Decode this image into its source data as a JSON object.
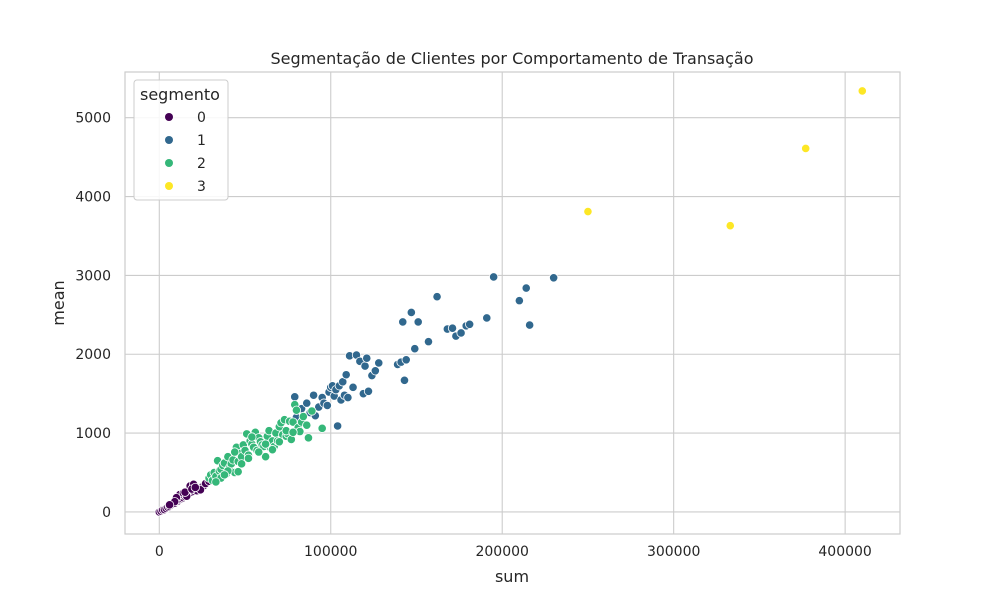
{
  "chart_data": {
    "type": "scatter",
    "title": "Segmentação de Clientes por Comportamento de Transação",
    "xlabel": "sum",
    "ylabel": "mean",
    "xlim": [
      -20000,
      432000
    ],
    "ylim": [
      -280,
      5580
    ],
    "x_ticks": [
      0,
      100000,
      200000,
      300000,
      400000
    ],
    "x_tick_labels": [
      "0",
      "100000",
      "200000",
      "300000",
      "400000"
    ],
    "y_ticks": [
      0,
      1000,
      2000,
      3000,
      4000,
      5000
    ],
    "y_tick_labels": [
      "0",
      "1000",
      "2000",
      "3000",
      "4000",
      "5000"
    ],
    "grid": true,
    "legend": {
      "title": "segmento",
      "placement": "top-left"
    },
    "series": [
      {
        "name": "0",
        "color": "#440154",
        "points": [
          [
            0,
            0
          ],
          [
            1000,
            10
          ],
          [
            2000,
            25
          ],
          [
            3000,
            30
          ],
          [
            4000,
            45
          ],
          [
            5000,
            60
          ],
          [
            6000,
            70
          ],
          [
            7000,
            85
          ],
          [
            8000,
            100
          ],
          [
            9000,
            110
          ],
          [
            10000,
            130
          ],
          [
            11000,
            140
          ],
          [
            12000,
            160
          ],
          [
            13000,
            170
          ],
          [
            14000,
            180
          ],
          [
            15000,
            195
          ],
          [
            16000,
            210
          ],
          [
            17000,
            225
          ],
          [
            18000,
            240
          ],
          [
            19000,
            250
          ],
          [
            20000,
            265
          ],
          [
            21000,
            280
          ],
          [
            22000,
            290
          ],
          [
            23000,
            300
          ],
          [
            24000,
            310
          ],
          [
            25000,
            320
          ],
          [
            26000,
            335
          ],
          [
            18000,
            330
          ],
          [
            20000,
            350
          ],
          [
            12000,
            220
          ],
          [
            10000,
            180
          ],
          [
            14000,
            240
          ],
          [
            16000,
            200
          ],
          [
            22000,
            270
          ],
          [
            24000,
            280
          ],
          [
            27000,
            360
          ],
          [
            29000,
            390
          ],
          [
            15000,
            250
          ],
          [
            9000,
            130
          ],
          [
            6000,
            90
          ],
          [
            19000,
            290
          ],
          [
            21000,
            310
          ]
        ]
      },
      {
        "name": "1",
        "color": "#31688e",
        "points": [
          [
            79000,
            1460
          ],
          [
            80000,
            1200
          ],
          [
            83000,
            1310
          ],
          [
            86000,
            1380
          ],
          [
            88000,
            1260
          ],
          [
            90000,
            1480
          ],
          [
            91000,
            1220
          ],
          [
            93000,
            1330
          ],
          [
            95000,
            1450
          ],
          [
            96000,
            1380
          ],
          [
            98000,
            1350
          ],
          [
            99000,
            1520
          ],
          [
            100000,
            1580
          ],
          [
            101000,
            1600
          ],
          [
            102000,
            1470
          ],
          [
            103000,
            1550
          ],
          [
            104000,
            1090
          ],
          [
            105000,
            1600
          ],
          [
            106000,
            1420
          ],
          [
            107000,
            1650
          ],
          [
            108000,
            1480
          ],
          [
            109000,
            1740
          ],
          [
            110000,
            1450
          ],
          [
            111000,
            1980
          ],
          [
            113000,
            1580
          ],
          [
            115000,
            1990
          ],
          [
            117000,
            1910
          ],
          [
            119000,
            1500
          ],
          [
            120000,
            1850
          ],
          [
            121000,
            1950
          ],
          [
            122000,
            1530
          ],
          [
            124000,
            1730
          ],
          [
            126000,
            1790
          ],
          [
            128000,
            1890
          ],
          [
            139000,
            1870
          ],
          [
            141000,
            1900
          ],
          [
            142000,
            2410
          ],
          [
            143000,
            1670
          ],
          [
            144000,
            1930
          ],
          [
            147000,
            2530
          ],
          [
            149000,
            2070
          ],
          [
            151000,
            2410
          ],
          [
            157000,
            2160
          ],
          [
            162000,
            2730
          ],
          [
            168000,
            2320
          ],
          [
            171000,
            2330
          ],
          [
            173000,
            2230
          ],
          [
            176000,
            2270
          ],
          [
            179000,
            2360
          ],
          [
            181000,
            2380
          ],
          [
            191000,
            2460
          ],
          [
            195000,
            2980
          ],
          [
            210000,
            2680
          ],
          [
            214000,
            2840
          ],
          [
            216000,
            2370
          ],
          [
            230000,
            2970
          ]
        ]
      },
      {
        "name": "2",
        "color": "#35b779",
        "points": [
          [
            29000,
            430
          ],
          [
            30000,
            470
          ],
          [
            31000,
            400
          ],
          [
            32000,
            500
          ],
          [
            33000,
            450
          ],
          [
            34000,
            650
          ],
          [
            35000,
            520
          ],
          [
            36000,
            540
          ],
          [
            37000,
            590
          ],
          [
            38000,
            620
          ],
          [
            39000,
            480
          ],
          [
            40000,
            700
          ],
          [
            41000,
            560
          ],
          [
            42000,
            610
          ],
          [
            43000,
            660
          ],
          [
            44000,
            500
          ],
          [
            45000,
            820
          ],
          [
            46000,
            640
          ],
          [
            47000,
            740
          ],
          [
            48000,
            700
          ],
          [
            49000,
            850
          ],
          [
            50000,
            780
          ],
          [
            51000,
            990
          ],
          [
            52000,
            720
          ],
          [
            53000,
            900
          ],
          [
            54000,
            860
          ],
          [
            55000,
            820
          ],
          [
            56000,
            1010
          ],
          [
            57000,
            780
          ],
          [
            58000,
            940
          ],
          [
            59000,
            890
          ],
          [
            60000,
            850
          ],
          [
            61000,
            830
          ],
          [
            62000,
            700
          ],
          [
            63000,
            960
          ],
          [
            64000,
            1030
          ],
          [
            65000,
            810
          ],
          [
            66000,
            900
          ],
          [
            67000,
            830
          ],
          [
            68000,
            1000
          ],
          [
            69000,
            900
          ],
          [
            70000,
            1080
          ],
          [
            71000,
            1130
          ],
          [
            72000,
            980
          ],
          [
            73000,
            1170
          ],
          [
            74000,
            960
          ],
          [
            75000,
            990
          ],
          [
            76000,
            1150
          ],
          [
            77000,
            920
          ],
          [
            78000,
            1140
          ],
          [
            79000,
            1360
          ],
          [
            80000,
            1290
          ],
          [
            81000,
            1070
          ],
          [
            82000,
            1020
          ],
          [
            83000,
            1140
          ],
          [
            84000,
            1210
          ],
          [
            86000,
            1100
          ],
          [
            87000,
            940
          ],
          [
            89000,
            1280
          ],
          [
            95000,
            1060
          ],
          [
            36000,
            430
          ],
          [
            40000,
            520
          ],
          [
            44000,
            760
          ],
          [
            48000,
            610
          ],
          [
            52000,
            680
          ],
          [
            33000,
            380
          ],
          [
            38000,
            470
          ],
          [
            46000,
            510
          ],
          [
            54000,
            950
          ],
          [
            58000,
            760
          ],
          [
            62000,
            860
          ],
          [
            66000,
            790
          ],
          [
            70000,
            890
          ],
          [
            74000,
            1030
          ],
          [
            78000,
            1010
          ]
        ]
      },
      {
        "name": "3",
        "color": "#fde725",
        "points": [
          [
            250000,
            3810
          ],
          [
            333000,
            3630
          ],
          [
            377000,
            4610
          ],
          [
            410000,
            5340
          ]
        ]
      }
    ]
  }
}
